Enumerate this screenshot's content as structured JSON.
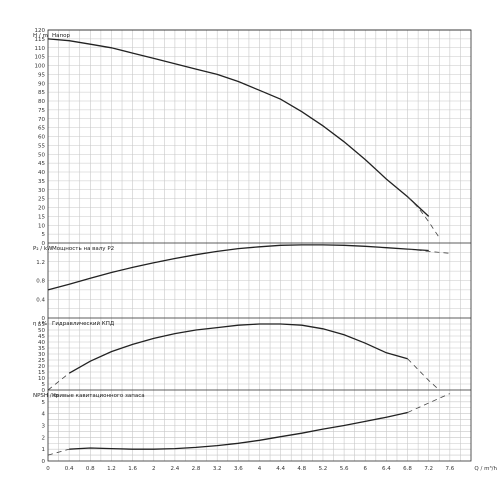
{
  "chart_data": {
    "type": "line",
    "x_axis": {
      "label": "Q / m³/h",
      "range": [
        0,
        8
      ],
      "ticks": [
        "0",
        "0.4",
        "0.8",
        "1.2",
        "1.6",
        "2",
        "2.4",
        "2.8",
        "3.2",
        "3.6",
        "4",
        "4.4",
        "4.8",
        "5.2",
        "5.6",
        "6",
        "6.4",
        "6.8",
        "7.2",
        "7.6"
      ]
    },
    "panels": [
      {
        "id": "head",
        "ylabel": "H / m",
        "title": "Напор",
        "ylim": [
          0,
          120
        ],
        "yticks": [
          "0",
          "5",
          "10",
          "15",
          "20",
          "25",
          "30",
          "35",
          "40",
          "45",
          "50",
          "55",
          "60",
          "65",
          "70",
          "75",
          "80",
          "85",
          "90",
          "95",
          "100",
          "105",
          "110",
          "115",
          "120"
        ],
        "series": [
          {
            "style": "solid",
            "x": [
              0,
              0.4,
              0.8,
              1.2,
              1.6,
              2.0,
              2.4,
              2.8,
              3.2,
              3.6,
              4.0,
              4.4,
              4.8,
              5.2,
              5.6,
              6.0,
              6.4,
              6.8,
              7.2
            ],
            "y": [
              115,
              114,
              112,
              110,
              107,
              104,
              101,
              98,
              95,
              91,
              86,
              81,
              74,
              66,
              57,
              47,
              36,
              26,
              15
            ]
          },
          {
            "style": "dashed",
            "x": [
              6.8,
              7.0,
              7.2,
              7.4
            ],
            "y": [
              26,
              20,
              12,
              3
            ]
          }
        ]
      },
      {
        "id": "power",
        "ylabel": "P₂ / kW",
        "title": "Мощность на валу P2",
        "ylim": [
          0,
          1.6
        ],
        "yticks": [
          "0",
          "0.4",
          "0.8",
          "1.2"
        ],
        "series": [
          {
            "style": "solid",
            "x": [
              0,
              0.4,
              0.8,
              1.2,
              1.6,
              2.0,
              2.4,
              2.8,
              3.2,
              3.6,
              4.0,
              4.4,
              4.8,
              5.2,
              5.6,
              6.0,
              6.4,
              6.8,
              7.2
            ],
            "y": [
              0.6,
              0.72,
              0.85,
              0.97,
              1.08,
              1.18,
              1.27,
              1.35,
              1.42,
              1.48,
              1.52,
              1.55,
              1.56,
              1.56,
              1.55,
              1.53,
              1.5,
              1.47,
              1.44
            ]
          },
          {
            "style": "dashed",
            "x": [
              6.8,
              7.2,
              7.6
            ],
            "y": [
              1.47,
              1.42,
              1.38
            ]
          }
        ]
      },
      {
        "id": "efficiency",
        "ylabel": "η / %",
        "title": "Гидравлический КПД",
        "ylim": [
          0,
          60
        ],
        "yticks": [
          "0",
          "5",
          "10",
          "15",
          "20",
          "25",
          "30",
          "35",
          "40",
          "45",
          "50",
          "55"
        ],
        "series": [
          {
            "style": "dashed",
            "x": [
              0,
              0.4
            ],
            "y": [
              0,
              14
            ]
          },
          {
            "style": "solid",
            "x": [
              0.4,
              0.8,
              1.2,
              1.6,
              2.0,
              2.4,
              2.8,
              3.2,
              3.6,
              4.0,
              4.4,
              4.8,
              5.2,
              5.6,
              6.0,
              6.4,
              6.8
            ],
            "y": [
              14,
              24,
              32,
              38,
              43,
              47,
              50,
              52,
              54,
              55,
              55,
              54,
              51,
              46,
              39,
              31,
              26
            ]
          },
          {
            "style": "dashed",
            "x": [
              6.8,
              7.0,
              7.2,
              7.4
            ],
            "y": [
              26,
              17,
              8,
              0
            ]
          }
        ]
      },
      {
        "id": "npsh",
        "ylabel": "NPSH / m",
        "title": "Кривые кавитационного запаса",
        "ylim": [
          0,
          6
        ],
        "yticks": [
          "0",
          "1",
          "2",
          "3",
          "4",
          "5"
        ],
        "series": [
          {
            "style": "dashed",
            "x": [
              0,
              0.4
            ],
            "y": [
              0.5,
              1.0
            ]
          },
          {
            "style": "solid",
            "x": [
              0.4,
              0.8,
              1.2,
              1.6,
              2.0,
              2.4,
              2.8,
              3.2,
              3.6,
              4.0,
              4.4,
              4.8,
              5.2,
              5.6,
              6.0,
              6.4,
              6.8
            ],
            "y": [
              1.0,
              1.1,
              1.05,
              1.0,
              1.0,
              1.05,
              1.15,
              1.3,
              1.5,
              1.75,
              2.05,
              2.35,
              2.7,
              3.0,
              3.35,
              3.7,
              4.1
            ]
          },
          {
            "style": "dashed",
            "x": [
              6.8,
              7.2,
              7.6
            ],
            "y": [
              4.1,
              4.9,
              5.7
            ]
          }
        ]
      }
    ]
  }
}
